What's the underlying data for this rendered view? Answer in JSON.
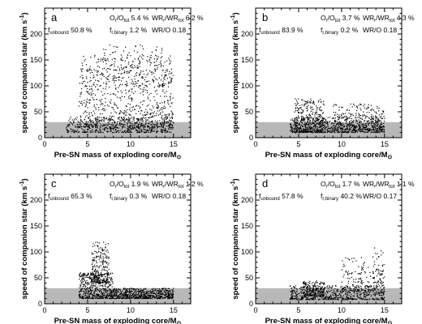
{
  "chart_data": [
    {
      "type": "scatter",
      "panel": "a",
      "xlabel": "Pre-SN mass of exploding core/M",
      "xlabel_sub": "⊙",
      "ylabel": "speed of companion star (km s",
      "ylabel_sup": "-1",
      "ylabel_end": ")",
      "xlim": [
        0,
        17
      ],
      "ylim": [
        0,
        250
      ],
      "xticks": [
        "0",
        "5",
        "10",
        "15"
      ],
      "yticks": [
        "0",
        "50",
        "100",
        "150",
        "200"
      ],
      "shaded_band": [
        0,
        30
      ],
      "stats": {
        "o_ratio_label": "O",
        "o_ratio_value": "5.4 %",
        "wr_ratio_label": "WR",
        "wr_ratio_value": "6.2 %",
        "f_unbound_label": "f",
        "f_unbound_value": "50.8 %",
        "f_rbinary_label": "f",
        "f_rbinary_value": "1.2 %",
        "wr_o_label": "WR/O",
        "wr_o_value": "0.18"
      },
      "clusters": [
        {
          "x_range": [
            2.5,
            15
          ],
          "y_range": [
            10,
            40
          ],
          "density": 500
        },
        {
          "x_range": [
            4,
            15
          ],
          "y_range": [
            20,
            160
          ],
          "density": 800
        },
        {
          "x_range": [
            6,
            14
          ],
          "y_range": [
            100,
            180
          ],
          "density": 150
        }
      ]
    },
    {
      "type": "scatter",
      "panel": "b",
      "xlabel": "Pre-SN mass of exploding core/M",
      "xlabel_sub": "⊙",
      "ylabel": "speed of companion star (km s",
      "ylabel_sup": "-1",
      "ylabel_end": ")",
      "xlim": [
        0,
        17
      ],
      "ylim": [
        0,
        250
      ],
      "xticks": [
        "0",
        "5",
        "10",
        "15"
      ],
      "yticks": [
        "0",
        "50",
        "100",
        "150",
        "200"
      ],
      "shaded_band": [
        0,
        30
      ],
      "stats": {
        "o_ratio_label": "O",
        "o_ratio_value": "3.7 %",
        "wr_ratio_label": "WR",
        "wr_ratio_value": "4.3 %",
        "f_unbound_label": "f",
        "f_unbound_value": "83.9 %",
        "f_rbinary_label": "f",
        "f_rbinary_value": "0.2 %",
        "wr_o_label": "WR/O",
        "wr_o_value": "0.18"
      },
      "clusters": [
        {
          "x_range": [
            4,
            15
          ],
          "y_range": [
            10,
            40
          ],
          "density": 700
        },
        {
          "x_range": [
            4.5,
            8
          ],
          "y_range": [
            10,
            75
          ],
          "density": 300
        },
        {
          "x_range": [
            9,
            15
          ],
          "y_range": [
            15,
            65
          ],
          "density": 250
        }
      ]
    },
    {
      "type": "scatter",
      "panel": "c",
      "xlabel": "Pre-SN mass of exploding core/M",
      "xlabel_sub": "⊙",
      "ylabel": "speed of companion star (km s",
      "ylabel_sup": "-1",
      "ylabel_end": ")",
      "xlim": [
        0,
        17
      ],
      "ylim": [
        0,
        250
      ],
      "xticks": [
        "0",
        "5",
        "10",
        "15"
      ],
      "yticks": [
        "0",
        "50",
        "100",
        "150",
        "200"
      ],
      "shaded_band": [
        0,
        30
      ],
      "stats": {
        "o_ratio_label": "O",
        "o_ratio_value": "1.9 %",
        "wr_ratio_label": "WR",
        "wr_ratio_value": "1.2 %",
        "f_unbound_label": "f",
        "f_unbound_value": "65.3 %",
        "f_rbinary_label": "f",
        "f_rbinary_value": "0.3 %",
        "wr_o_label": "WR/O",
        "wr_o_value": "0.18"
      },
      "clusters": [
        {
          "x_range": [
            4,
            8
          ],
          "y_range": [
            10,
            60
          ],
          "density": 500
        },
        {
          "x_range": [
            5.5,
            7.5
          ],
          "y_range": [
            40,
            120
          ],
          "density": 250
        },
        {
          "x_range": [
            8,
            15
          ],
          "y_range": [
            10,
            30
          ],
          "density": 600
        }
      ]
    },
    {
      "type": "scatter",
      "panel": "d",
      "xlabel": "Pre-SN mass of exploding core/M",
      "xlabel_sub": "⊙",
      "ylabel": "speed of companion star (km s",
      "ylabel_sup": "-1",
      "ylabel_end": ")",
      "xlim": [
        0,
        17
      ],
      "ylim": [
        0,
        250
      ],
      "xticks": [
        "0",
        "5",
        "10",
        "15"
      ],
      "yticks": [
        "0",
        "50",
        "100",
        "150",
        "200"
      ],
      "shaded_band": [
        0,
        30
      ],
      "stats": {
        "o_ratio_label": "O",
        "o_ratio_value": "1.7 %",
        "wr_ratio_label": "WR",
        "wr_ratio_value": "1.1 %",
        "f_unbound_label": "f",
        "f_unbound_value": "57.8 %",
        "f_rbinary_label": "f",
        "f_rbinary_value": "40.2 %",
        "wr_o_label": "WR/O",
        "wr_o_value": "0.17"
      },
      "clusters": [
        {
          "x_range": [
            4,
            15
          ],
          "y_range": [
            8,
            35
          ],
          "density": 600
        },
        {
          "x_range": [
            5.5,
            8
          ],
          "y_range": [
            15,
            45
          ],
          "density": 200
        },
        {
          "x_range": [
            10,
            15
          ],
          "y_range": [
            20,
            90
          ],
          "density": 150
        },
        {
          "x_range": [
            13.5,
            15
          ],
          "y_range": [
            40,
            120
          ],
          "density": 40
        }
      ]
    }
  ]
}
